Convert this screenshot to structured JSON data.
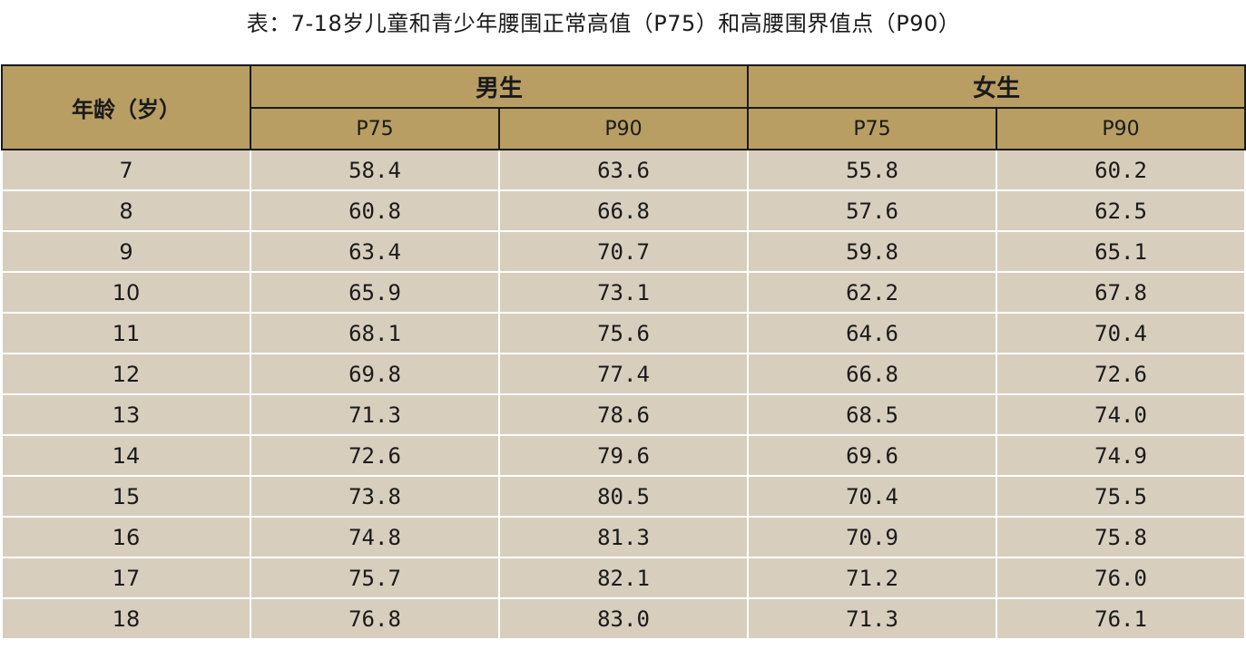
{
  "title": "表：7-18岁儿童和青少年腰围正常高值（P75）和高腰围界值点（P90）",
  "header": {
    "age": "年龄（岁）",
    "male": "男生",
    "female": "女生",
    "male_p75": "P75",
    "male_p90": "P90",
    "female_p75": "P75",
    "female_p90": "P90"
  },
  "rows": [
    {
      "age": "7",
      "m75": "58.4",
      "m90": "63.6",
      "f75": "55.8",
      "f90": "60.2"
    },
    {
      "age": "8",
      "m75": "60.8",
      "m90": "66.8",
      "f75": "57.6",
      "f90": "62.5"
    },
    {
      "age": "9",
      "m75": "63.4",
      "m90": "70.7",
      "f75": "59.8",
      "f90": "65.1"
    },
    {
      "age": "10",
      "m75": "65.9",
      "m90": "73.1",
      "f75": "62.2",
      "f90": "67.8"
    },
    {
      "age": "11",
      "m75": "68.1",
      "m90": "75.6",
      "f75": "64.6",
      "f90": "70.4"
    },
    {
      "age": "12",
      "m75": "69.8",
      "m90": "77.4",
      "f75": "66.8",
      "f90": "72.6"
    },
    {
      "age": "13",
      "m75": "71.3",
      "m90": "78.6",
      "f75": "68.5",
      "f90": "74.0"
    },
    {
      "age": "14",
      "m75": "72.6",
      "m90": "79.6",
      "f75": "69.6",
      "f90": "74.9"
    },
    {
      "age": "15",
      "m75": "73.8",
      "m90": "80.5",
      "f75": "70.4",
      "f90": "75.5"
    },
    {
      "age": "16",
      "m75": "74.8",
      "m90": "81.3",
      "f75": "70.9",
      "f90": "75.8"
    },
    {
      "age": "17",
      "m75": "75.7",
      "m90": "82.1",
      "f75": "71.2",
      "f90": "76.0"
    },
    {
      "age": "18",
      "m75": "76.8",
      "m90": "83.0",
      "f75": "71.3",
      "f90": "76.1"
    }
  ],
  "colors": {
    "header_bg": "#b89e63",
    "row_bg": "#d8cebe"
  }
}
